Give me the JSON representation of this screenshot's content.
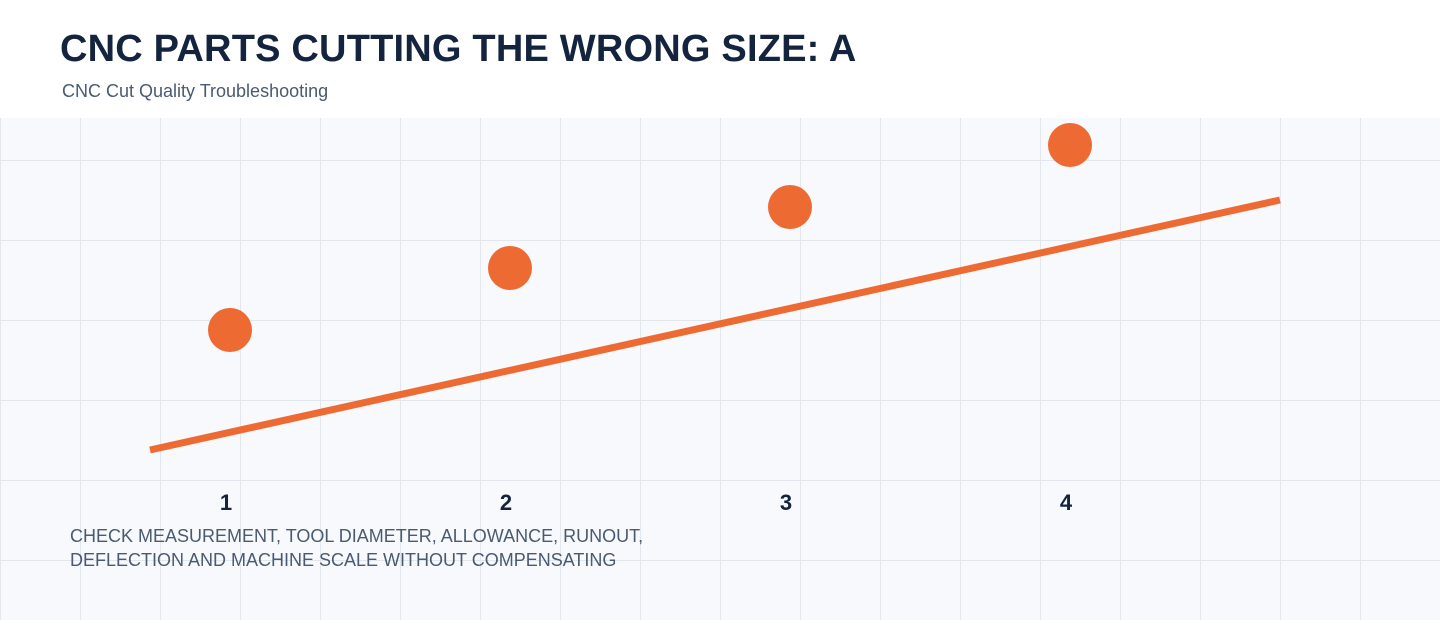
{
  "header": {
    "title": "CNC PARTS CUTTING THE WRONG SIZE: A",
    "subtitle": "CNC Cut Quality Troubleshooting"
  },
  "diagram": {
    "steps": [
      "1",
      "2",
      "3",
      "4"
    ],
    "note_line1": "CHECK MEASUREMENT, TOOL DIAMETER, ALLOWANCE, RUNOUT,",
    "note_line2": "DEFLECTION AND MACHINE SCALE WITHOUT COMPENSATING"
  },
  "colors": {
    "accent": "#ee6a33",
    "title": "#14243f",
    "muted": "#4a5a70",
    "background": "#f7f9fc",
    "grid": "#e2e7ee"
  }
}
